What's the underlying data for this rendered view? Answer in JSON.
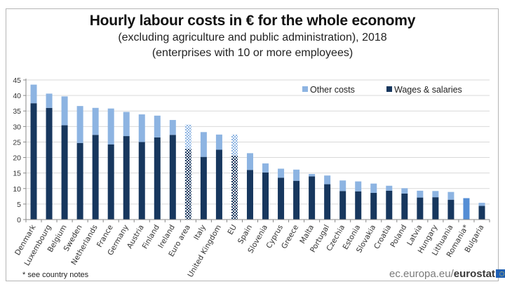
{
  "colors": {
    "other_costs": "#8db4e2",
    "wages": "#17375e",
    "romania": "#558ed5",
    "grid": "#d9d9d9",
    "axis": "#888888"
  },
  "note": "* see country notes",
  "source": {
    "prefix": "ec.europa.eu/",
    "brand": "eurostat",
    "logo_icon": "eu-flag-icon"
  },
  "chart_data": {
    "type": "bar",
    "stacked": true,
    "title": "Hourly labour costs in € for the whole economy",
    "subtitle": [
      "(excluding agriculture and public administration), 2018",
      "(enterprises with 10 or more employees)"
    ],
    "xlabel": "",
    "ylabel": "",
    "ylim": [
      0,
      45
    ],
    "yticks": [
      0,
      5,
      10,
      15,
      20,
      25,
      30,
      35,
      40,
      45
    ],
    "grid": true,
    "legend_position": "top-right",
    "legend": [
      "Other costs",
      "Wages & salaries"
    ],
    "categories": [
      "Denmark",
      "Luxembourg",
      "Belgium",
      "Sweden",
      "Netherlands",
      "France",
      "Germany",
      "Austria",
      "Finland",
      "Ireland",
      "Euro area",
      "Italy",
      "United Kingdom",
      "EU",
      "Spain",
      "Slovenia",
      "Cyprus",
      "Greece",
      "Malta",
      "Portugal",
      "Czechia",
      "Estonia",
      "Slovakia",
      "Croatia",
      "Poland",
      "Latvia",
      "Hungary",
      "Lithuania",
      "Romania*",
      "Bulgaria"
    ],
    "aggregates": [
      "Euro area",
      "EU"
    ],
    "total_only": [
      "Romania*"
    ],
    "series": [
      {
        "name": "Wages & salaries",
        "values": [
          37.5,
          36.0,
          30.4,
          24.7,
          27.3,
          24.2,
          26.9,
          25.0,
          26.5,
          27.3,
          22.8,
          20.2,
          22.5,
          20.6,
          16.0,
          15.2,
          13.5,
          12.5,
          13.9,
          11.4,
          9.2,
          9.1,
          8.6,
          9.3,
          8.4,
          7.1,
          7.2,
          6.4,
          6.9,
          4.4
        ]
      },
      {
        "name": "Other costs",
        "values": [
          6.0,
          4.6,
          9.3,
          11.9,
          8.7,
          11.6,
          7.8,
          8.9,
          7.0,
          4.8,
          7.8,
          8.0,
          4.9,
          6.8,
          5.4,
          2.9,
          2.9,
          3.6,
          0.8,
          2.8,
          3.4,
          3.2,
          3.0,
          1.6,
          1.7,
          2.2,
          2.0,
          2.5,
          0.0,
          1.0
        ]
      }
    ]
  }
}
